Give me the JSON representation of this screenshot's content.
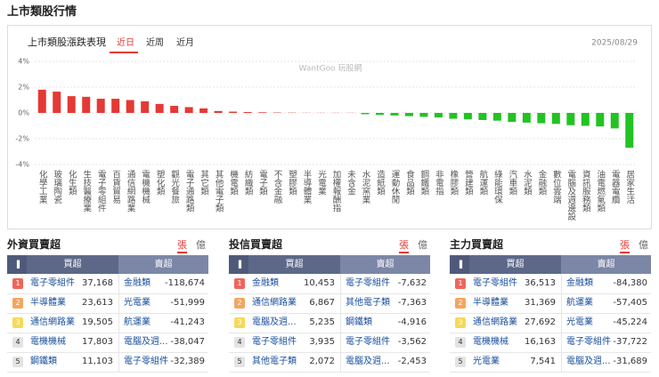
{
  "header": {
    "title": "上市類股行情"
  },
  "chart_tabs": {
    "tabs": [
      "近日",
      "近周",
      "近月"
    ],
    "date": "2025/08/29",
    "watermark": "WantGoo 玩股網"
  },
  "chart_data": {
    "type": "bar",
    "title": "上市類股漲跌表現",
    "categories": [
      "化學工業",
      "玻璃陶瓷",
      "化生類",
      "生技醫療業",
      "電子零組件",
      "百貨貿易",
      "通信網路業",
      "電機機械",
      "塑化類",
      "觀光餐旅",
      "電子通路類",
      "其它類",
      "其他電子類",
      "機電類",
      "紡織類",
      "電子類",
      "不含金融",
      "塑膠類",
      "半導體業",
      "光電業",
      "加權報酬指",
      "未含金",
      "水泥窯業",
      "造紙類",
      "運動休閒",
      "食品類",
      "鋼鐵類",
      "非電指",
      "橡膠類",
      "營建類",
      "航運類",
      "綠能環保",
      "汽車類",
      "水泥類",
      "金融類",
      "數位雲端",
      "電腦及週邊設",
      "資訊服務類",
      "油電燃氣類",
      "電器電纜",
      "居家生活"
    ],
    "values": [
      1.8,
      1.65,
      1.3,
      1.25,
      1.1,
      1.1,
      1.0,
      0.9,
      0.7,
      0.55,
      0.45,
      0.35,
      0.15,
      0.1,
      0.07,
      0.05,
      0.03,
      0.02,
      0.01,
      0.01,
      0.01,
      0.01,
      -0.1,
      -0.15,
      -0.2,
      -0.25,
      -0.3,
      -0.35,
      -0.45,
      -0.5,
      -0.55,
      -0.6,
      -0.7,
      -0.75,
      -0.8,
      -0.85,
      -0.95,
      -1.0,
      -1.05,
      -1.2,
      -2.7
    ],
    "ylim": [
      -4,
      4
    ],
    "yticks": [
      {
        "value": 4,
        "label": "4%"
      },
      {
        "value": 2,
        "label": "2%"
      },
      {
        "value": 0,
        "label": "0%"
      },
      {
        "value": -2,
        "label": "-2%"
      },
      {
        "value": -4,
        "label": "-4%"
      }
    ],
    "grid": true,
    "up_color": "#e53935",
    "down_color": "#22c322"
  },
  "tables": [
    {
      "title": "外資買賣超",
      "units": [
        "張",
        "億"
      ],
      "columns": [
        "買超",
        "賣超"
      ],
      "rows": [
        [
          "1",
          "電子零組件",
          "37,168",
          "金融類",
          "-118,674"
        ],
        [
          "2",
          "半導體業",
          "23,613",
          "光電業",
          "-51,999"
        ],
        [
          "3",
          "通信網路業",
          "19,505",
          "航運業",
          "-41,243"
        ],
        [
          "4",
          "電機機械",
          "17,803",
          "電腦及週...",
          "-38,047"
        ],
        [
          "5",
          "鋼鐵類",
          "11,103",
          "電子零組件",
          "-32,389"
        ]
      ]
    },
    {
      "title": "投信買賣超",
      "units": [
        "張",
        "億"
      ],
      "columns": [
        "買超",
        "賣超"
      ],
      "rows": [
        [
          "1",
          "金融類",
          "10,453",
          "電子零組件",
          "-7,632"
        ],
        [
          "2",
          "通信網路業",
          "6,867",
          "其他電子類",
          "-7,363"
        ],
        [
          "3",
          "電腦及週...",
          "5,235",
          "鋼鐵類",
          "-4,916"
        ],
        [
          "4",
          "電子零組件",
          "3,935",
          "電子零組件",
          "-3,562"
        ],
        [
          "5",
          "其他電子類",
          "2,072",
          "電腦及週...",
          "-2,453"
        ]
      ]
    },
    {
      "title": "主力買賣超",
      "units": [
        "張",
        "億"
      ],
      "columns": [
        "買超",
        "賣超"
      ],
      "rows": [
        [
          "1",
          "電子零組件",
          "36,513",
          "金融類",
          "-84,380"
        ],
        [
          "2",
          "半導體業",
          "31,369",
          "航運業",
          "-57,405"
        ],
        [
          "3",
          "通信網路業",
          "27,692",
          "光電業",
          "-45,224"
        ],
        [
          "4",
          "電機機械",
          "16,163",
          "電子零組件",
          "-37,722"
        ],
        [
          "5",
          "光電業",
          "7,541",
          "電腦及週...",
          "-31,689"
        ]
      ]
    }
  ]
}
